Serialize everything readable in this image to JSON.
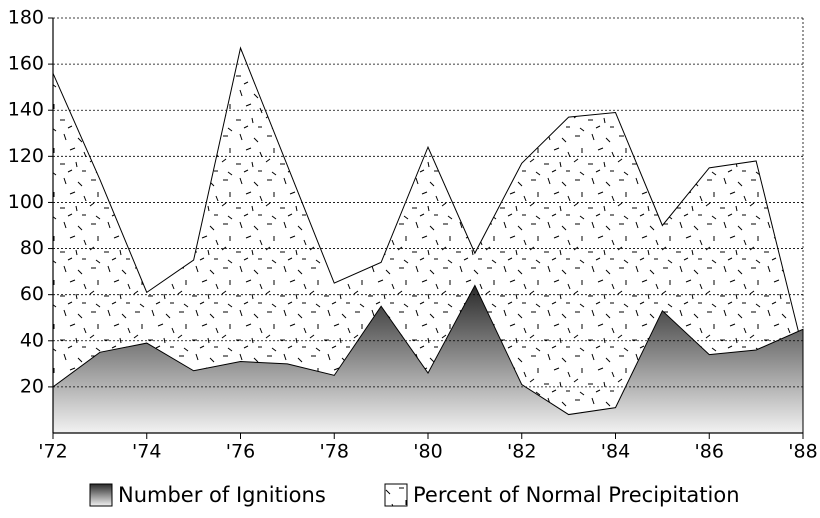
{
  "chart_data": {
    "type": "area",
    "x": [
      1972,
      1973,
      1974,
      1975,
      1976,
      1977,
      1978,
      1979,
      1980,
      1981,
      1982,
      1983,
      1984,
      1985,
      1986,
      1987,
      1988
    ],
    "series": [
      {
        "name": "Number of Ignitions",
        "color": "#2a2a2a",
        "values": [
          20,
          35,
          39,
          27,
          31,
          30,
          25,
          55,
          26,
          64,
          21,
          8,
          11,
          53,
          34,
          36,
          45
        ]
      },
      {
        "name": "Percent of Normal Precipitation",
        "color": "#ffffff",
        "values": [
          156,
          110,
          61,
          75,
          167,
          116,
          65,
          74,
          124,
          78,
          117,
          137,
          139,
          90,
          115,
          118,
          36
        ]
      }
    ],
    "xlim": [
      1972,
      1988
    ],
    "xticks": [
      {
        "value": 1972,
        "label": "'72"
      },
      {
        "value": 1974,
        "label": "'74"
      },
      {
        "value": 1976,
        "label": "'76"
      },
      {
        "value": 1978,
        "label": "'78"
      },
      {
        "value": 1980,
        "label": "'80"
      },
      {
        "value": 1982,
        "label": "'82"
      },
      {
        "value": 1984,
        "label": "'84"
      },
      {
        "value": 1986,
        "label": "'86"
      },
      {
        "value": 1988,
        "label": "'88"
      }
    ],
    "ylim": [
      0,
      180
    ],
    "yticks": [
      20,
      40,
      60,
      80,
      100,
      120,
      140,
      160,
      180
    ],
    "grid": true,
    "legend": "bottom"
  }
}
